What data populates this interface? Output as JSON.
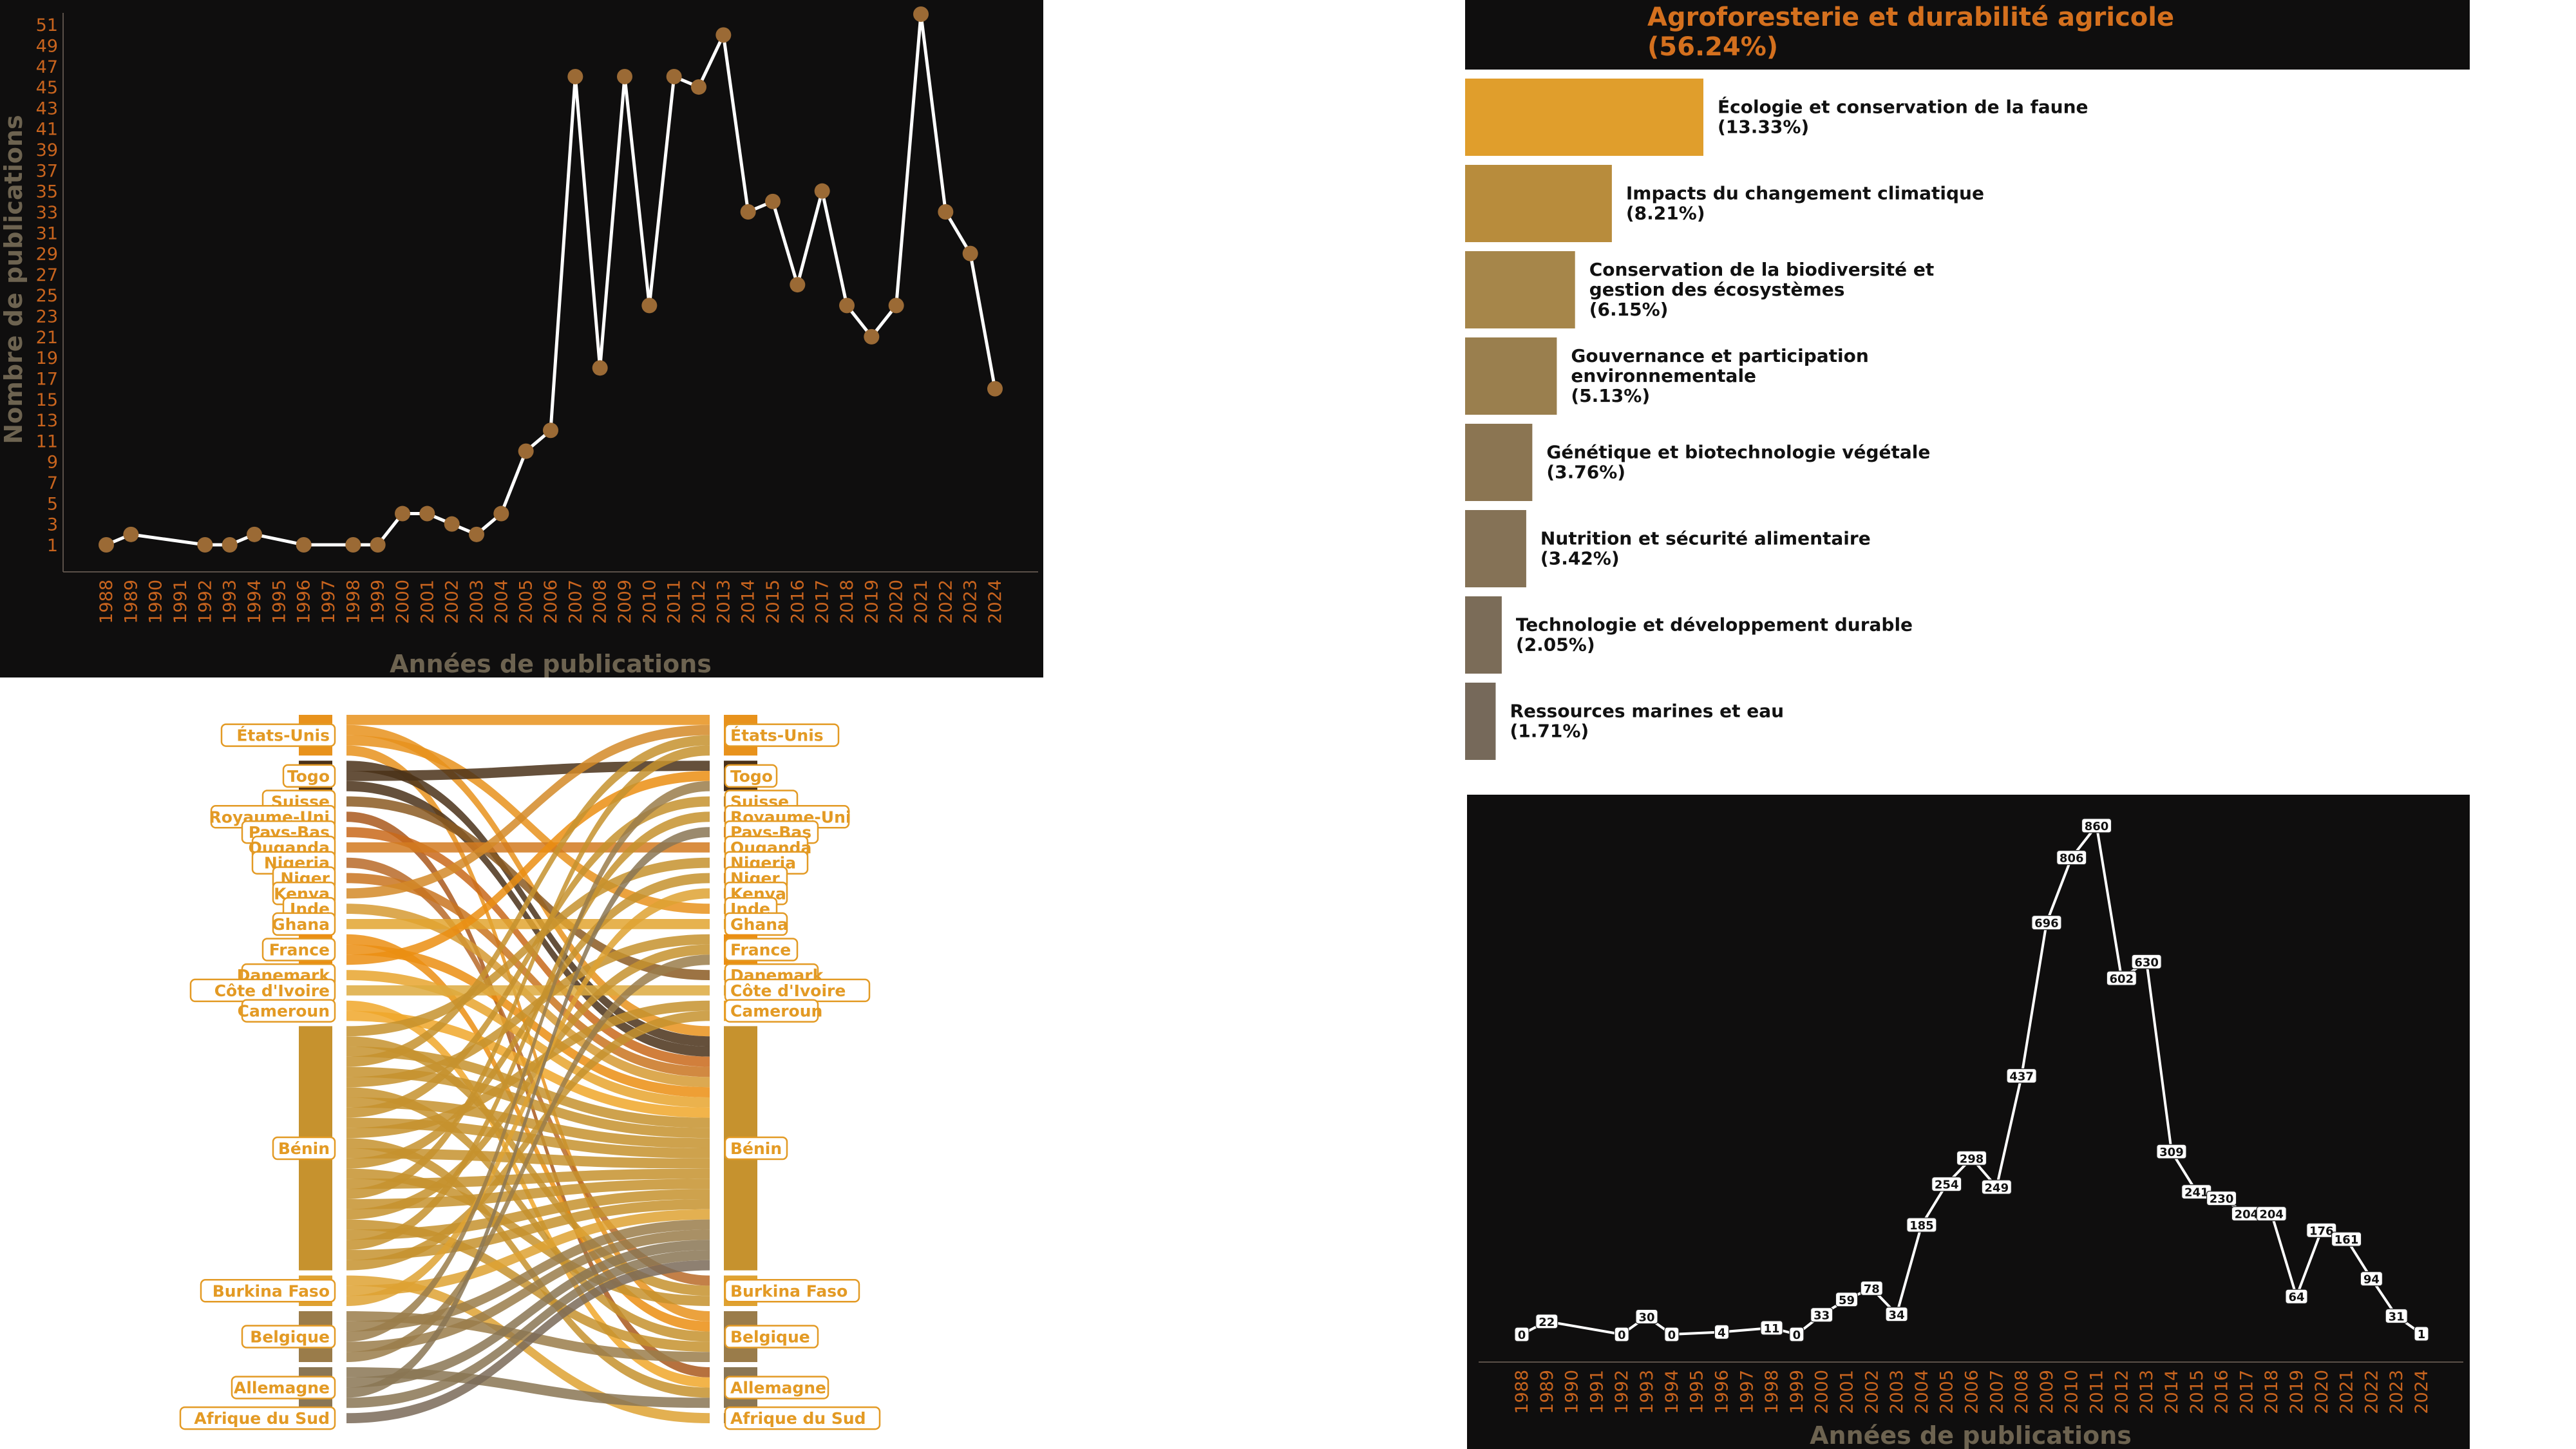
{
  "chart_data": [
    {
      "type": "line",
      "ylabel": "Nombre de publications",
      "xlabel": "Années de publications",
      "x": [
        "1988",
        "1989",
        "1990",
        "1991",
        "1992",
        "1993",
        "1994",
        "1995",
        "1996",
        "1997",
        "1998",
        "1999",
        "2000",
        "2001",
        "2002",
        "2003",
        "2004",
        "2005",
        "2006",
        "2007",
        "2008",
        "2009",
        "2010",
        "2011",
        "2012",
        "2013",
        "2014",
        "2015",
        "2016",
        "2017",
        "2018",
        "2019",
        "2020",
        "2021",
        "2022",
        "2023",
        "2024"
      ],
      "y_ticks": [
        "1",
        "3",
        "5",
        "7",
        "9",
        "11",
        "13",
        "15",
        "17",
        "19",
        "21",
        "23",
        "25",
        "27",
        "29",
        "31",
        "33",
        "35",
        "37",
        "39",
        "41",
        "43",
        "45",
        "47",
        "49",
        "51"
      ],
      "points": [
        {
          "x": "1988",
          "y": 1
        },
        {
          "x": "1989",
          "y": 2
        },
        {
          "x": "1992",
          "y": 1
        },
        {
          "x": "1993",
          "y": 1
        },
        {
          "x": "1994",
          "y": 2
        },
        {
          "x": "1996",
          "y": 1
        },
        {
          "x": "1998",
          "y": 1
        },
        {
          "x": "1999",
          "y": 1
        },
        {
          "x": "2000",
          "y": 4
        },
        {
          "x": "2001",
          "y": 4
        },
        {
          "x": "2002",
          "y": 3
        },
        {
          "x": "2003",
          "y": 2
        },
        {
          "x": "2004",
          "y": 4
        },
        {
          "x": "2005",
          "y": 10
        },
        {
          "x": "2006",
          "y": 12
        },
        {
          "x": "2007",
          "y": 46
        },
        {
          "x": "2008",
          "y": 18
        },
        {
          "x": "2009",
          "y": 46
        },
        {
          "x": "2010",
          "y": 24
        },
        {
          "x": "2011",
          "y": 46
        },
        {
          "x": "2012",
          "y": 45
        },
        {
          "x": "2013",
          "y": 50
        },
        {
          "x": "2014",
          "y": 33
        },
        {
          "x": "2015",
          "y": 34
        },
        {
          "x": "2016",
          "y": 26
        },
        {
          "x": "2017",
          "y": 35
        },
        {
          "x": "2018",
          "y": 24
        },
        {
          "x": "2019",
          "y": 21
        },
        {
          "x": "2020",
          "y": 24
        },
        {
          "x": "2021",
          "y": 52
        },
        {
          "x": "2022",
          "y": 33
        },
        {
          "x": "2023",
          "y": 29
        },
        {
          "x": "2024",
          "y": 16
        }
      ],
      "ylim": [
        0,
        52
      ],
      "colors": {
        "bg": "#0f0e0e",
        "line": "#ffffff",
        "marker": "#9b6a35",
        "tick": "#c8641e",
        "label": "#6d6350"
      }
    },
    {
      "type": "bar",
      "title": "Agroforesterie et durabilité agricole",
      "title_pct": "(56.24%)",
      "categories": [
        {
          "lines": [
            "Écologie et conservation de la faune"
          ],
          "pct": "(13.33%)",
          "value": 13.33,
          "color": "#e09e2c"
        },
        {
          "lines": [
            "Impacts du changement climatique"
          ],
          "pct": "(8.21%)",
          "value": 8.21,
          "color": "#b88c3c"
        },
        {
          "lines": [
            "Conservation de la biodiversité et",
            "gestion des écosystèmes"
          ],
          "pct": "(6.15%)",
          "value": 6.15,
          "color": "#a6864a"
        },
        {
          "lines": [
            "Gouvernance et participation",
            "environnementale"
          ],
          "pct": "(5.13%)",
          "value": 5.13,
          "color": "#9a7f4e"
        },
        {
          "lines": [
            "Génétique et biotechnologie végétale"
          ],
          "pct": "(3.76%)",
          "value": 3.76,
          "color": "#8b7552"
        },
        {
          "lines": [
            "Nutrition et sécurité alimentaire"
          ],
          "pct": "(3.42%)",
          "value": 3.42,
          "color": "#857256"
        },
        {
          "lines": [
            "Technologie et développement durable"
          ],
          "pct": "(2.05%)",
          "value": 2.05,
          "color": "#7b6c58"
        },
        {
          "lines": [
            "Ressources marines et eau"
          ],
          "pct": "(1.71%)",
          "value": 1.71,
          "color": "#76695a"
        }
      ],
      "colors": {
        "title_bg": "#0f0e0e",
        "title": "#d4701e"
      }
    },
    {
      "type": "sankey",
      "nodes": [
        "États-Unis",
        "Togo",
        "Suisse",
        "Royaume-Uni",
        "Pays-Bas",
        "Ouganda",
        "Nigeria",
        "Niger",
        "Kenya",
        "Inde",
        "Ghana",
        "France",
        "Danemark",
        "Côte d'Ivoire",
        "Cameroun",
        "Bénin",
        "Burkina Faso",
        "Belgique",
        "Allemagne",
        "Afrique du Sud"
      ],
      "node_weights": [
        4,
        3,
        1,
        1,
        1,
        1,
        1,
        1,
        1,
        1,
        1,
        3,
        1,
        1,
        2,
        24,
        3,
        5,
        4,
        1
      ],
      "node_colors": [
        "#e8921c",
        "#4a3119",
        "#8b5a22",
        "#a9581c",
        "#c9681a",
        "#d27a20",
        "#b86a28",
        "#c97420",
        "#d38a28",
        "#d69a32",
        "#e2a430",
        "#eb8e12",
        "#e7a42e",
        "#ddaa40",
        "#f0a72a",
        "#c6922e",
        "#dea232",
        "#9a7c4a",
        "#8a7654",
        "#7a6a58"
      ],
      "label_color": "#e39a24"
    },
    {
      "type": "line",
      "xlabel": "Années de publications",
      "x": [
        "1988",
        "1989",
        "1990",
        "1991",
        "1992",
        "1993",
        "1994",
        "1995",
        "1996",
        "1997",
        "1998",
        "1999",
        "2000",
        "2001",
        "2002",
        "2003",
        "2004",
        "2005",
        "2006",
        "2007",
        "2008",
        "2009",
        "2010",
        "2011",
        "2012",
        "2013",
        "2014",
        "2015",
        "2016",
        "2017",
        "2018",
        "2019",
        "2020",
        "2021",
        "2022",
        "2023",
        "2024"
      ],
      "points": [
        {
          "x": "1988",
          "y": 0
        },
        {
          "x": "1989",
          "y": 22
        },
        {
          "x": "1992",
          "y": 0
        },
        {
          "x": "1993",
          "y": 30
        },
        {
          "x": "1994",
          "y": 0
        },
        {
          "x": "1996",
          "y": 4
        },
        {
          "x": "1998",
          "y": 11
        },
        {
          "x": "1999",
          "y": 0
        },
        {
          "x": "2000",
          "y": 33
        },
        {
          "x": "2001",
          "y": 59
        },
        {
          "x": "2002",
          "y": 78
        },
        {
          "x": "2003",
          "y": 34
        },
        {
          "x": "2004",
          "y": 185
        },
        {
          "x": "2005",
          "y": 254
        },
        {
          "x": "2006",
          "y": 298
        },
        {
          "x": "2007",
          "y": 249
        },
        {
          "x": "2008",
          "y": 437
        },
        {
          "x": "2009",
          "y": 696
        },
        {
          "x": "2010",
          "y": 806
        },
        {
          "x": "2011",
          "y": 860
        },
        {
          "x": "2012",
          "y": 602
        },
        {
          "x": "2013",
          "y": 630
        },
        {
          "x": "2014",
          "y": 309
        },
        {
          "x": "2015",
          "y": 241
        },
        {
          "x": "2016",
          "y": 230
        },
        {
          "x": "2017",
          "y": 204
        },
        {
          "x": "2018",
          "y": 204
        },
        {
          "x": "2019",
          "y": 64
        },
        {
          "x": "2020",
          "y": 176
        },
        {
          "x": "2021",
          "y": 161
        },
        {
          "x": "2022",
          "y": 94
        },
        {
          "x": "2023",
          "y": 31
        },
        {
          "x": "2024",
          "y": 1
        }
      ],
      "ylim": [
        0,
        880
      ],
      "colors": {
        "bg": "#0f0e0e",
        "line": "#ffffff",
        "tick": "#c8641e",
        "label": "#6d6350"
      }
    }
  ]
}
